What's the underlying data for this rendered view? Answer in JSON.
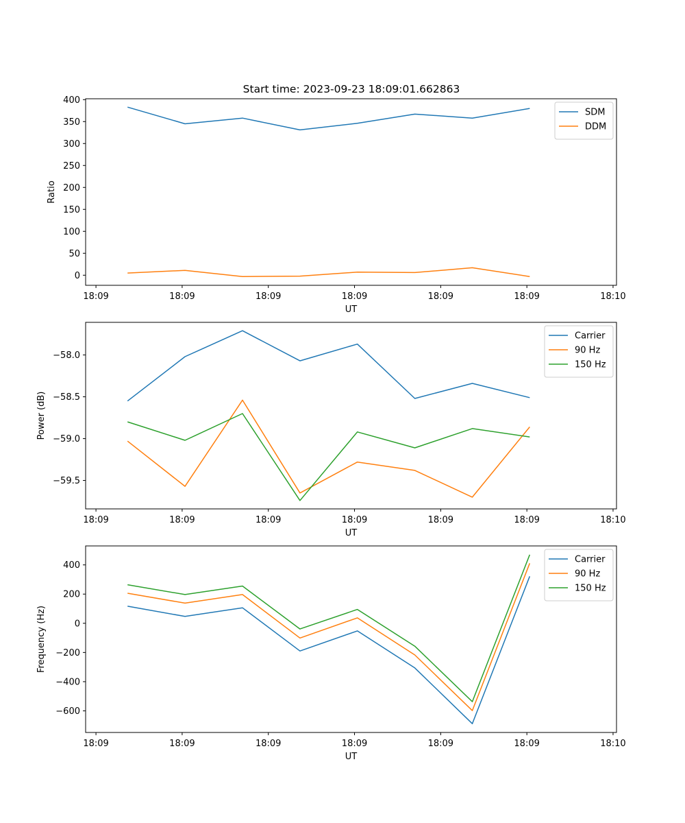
{
  "figure_title": "Start time: 2023-09-23 18:09:01.662863",
  "colors": {
    "blue": "#1f77b4",
    "orange": "#ff7f0e",
    "green": "#2ca02c"
  },
  "chart_data": [
    {
      "type": "line",
      "title": "Start time: 2023-09-23 18:09:01.662863",
      "xlabel": "UT",
      "ylabel": "Ratio",
      "x": [
        1,
        2,
        3,
        4,
        5,
        6,
        7,
        8
      ],
      "xlim": [
        0.27,
        9.51
      ],
      "x_ticks": [
        0.45,
        1.95,
        3.45,
        4.95,
        6.45,
        7.95,
        9.45
      ],
      "x_tick_labels": [
        "18:09",
        "18:09",
        "18:09",
        "18:09",
        "18:09",
        "18:09",
        "18:10"
      ],
      "ylim": [
        -23,
        402
      ],
      "y_ticks": [
        0,
        50,
        100,
        150,
        200,
        250,
        300,
        350,
        400
      ],
      "y_tick_labels": [
        "0",
        "50",
        "100",
        "150",
        "200",
        "250",
        "300",
        "350",
        "400"
      ],
      "legend": "top-right",
      "series": [
        {
          "name": "SDM",
          "color": "#1f77b4",
          "values": [
            383,
            345,
            358,
            331,
            346,
            367,
            358,
            380
          ]
        },
        {
          "name": "DDM",
          "color": "#ff7f0e",
          "values": [
            5,
            11,
            -3,
            -2,
            7,
            6,
            17,
            -3
          ]
        }
      ]
    },
    {
      "type": "line",
      "title": "",
      "xlabel": "UT",
      "ylabel": "Power (dB)",
      "x": [
        1,
        2,
        3,
        4,
        5,
        6,
        7,
        8
      ],
      "xlim": [
        0.27,
        9.51
      ],
      "x_ticks": [
        0.45,
        1.95,
        3.45,
        4.95,
        6.45,
        7.95,
        9.45
      ],
      "x_tick_labels": [
        "18:09",
        "18:09",
        "18:09",
        "18:09",
        "18:09",
        "18:09",
        "18:10"
      ],
      "ylim": [
        -59.84,
        -57.61
      ],
      "y_ticks": [
        -59.5,
        -59.0,
        -58.5,
        -58.0
      ],
      "y_tick_labels": [
        "−59.5",
        "−59.0",
        "−58.5",
        "−58.0"
      ],
      "legend": "top-right",
      "series": [
        {
          "name": "Carrier",
          "color": "#1f77b4",
          "values": [
            -58.55,
            -58.02,
            -57.71,
            -58.07,
            -57.87,
            -58.52,
            -58.34,
            -58.51
          ]
        },
        {
          "name": "90 Hz",
          "color": "#ff7f0e",
          "values": [
            -59.03,
            -59.57,
            -58.54,
            -59.65,
            -59.28,
            -59.38,
            -59.7,
            -58.86
          ]
        },
        {
          "name": "150 Hz",
          "color": "#2ca02c",
          "values": [
            -58.8,
            -59.02,
            -58.7,
            -59.74,
            -58.92,
            -59.11,
            -58.88,
            -58.98
          ]
        }
      ]
    },
    {
      "type": "line",
      "title": "",
      "xlabel": "UT",
      "ylabel": "Frequency (Hz)",
      "x": [
        1,
        2,
        3,
        4,
        5,
        6,
        7,
        8
      ],
      "xlim": [
        0.27,
        9.51
      ],
      "x_ticks": [
        0.45,
        1.95,
        3.45,
        4.95,
        6.45,
        7.95,
        9.45
      ],
      "x_tick_labels": [
        "18:09",
        "18:09",
        "18:09",
        "18:09",
        "18:09",
        "18:09",
        "18:10"
      ],
      "ylim": [
        -748,
        530
      ],
      "y_ticks": [
        -600,
        -400,
        -200,
        0,
        200,
        400
      ],
      "y_tick_labels": [
        "−600",
        "−400",
        "−200",
        "0",
        "200",
        "400"
      ],
      "legend": "top-right",
      "series": [
        {
          "name": "Carrier",
          "color": "#1f77b4",
          "values": [
            117,
            47,
            106,
            -190,
            -52,
            -306,
            -688,
            322
          ]
        },
        {
          "name": "90 Hz",
          "color": "#ff7f0e",
          "values": [
            206,
            138,
            197,
            -101,
            37,
            -217,
            -598,
            411
          ]
        },
        {
          "name": "150 Hz",
          "color": "#2ca02c",
          "values": [
            264,
            197,
            255,
            -39,
            95,
            -157,
            -537,
            470
          ]
        }
      ]
    }
  ]
}
